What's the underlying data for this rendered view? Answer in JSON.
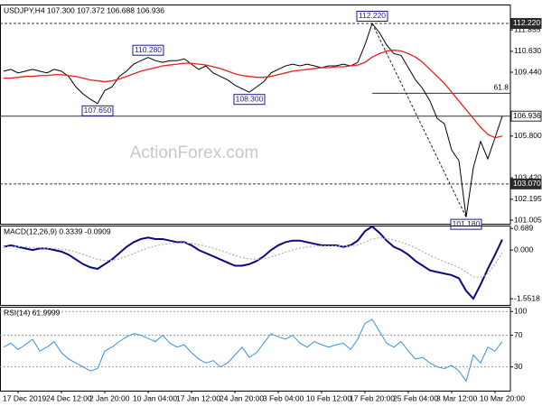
{
  "chart_data": [
    {
      "type": "line",
      "title": "USDJPY,H4 107.300 107.372 106.688 106.936",
      "watermark": "ActionForex.com",
      "ylim": [
        100.8,
        113.3
      ],
      "yticks": [
        101.005,
        102.195,
        {
          "value": 103.42,
          "label": "103.420"
        },
        {
          "value": 105.8,
          "label": "105.800"
        },
        {
          "value": 109.44,
          "label": "109.440"
        },
        {
          "value": 110.63,
          "label": "110.630"
        },
        111.855
      ],
      "series": [
        {
          "color": "#000000",
          "width": 1,
          "values": [
            109.5,
            109.6,
            109.4,
            109.5,
            109.6,
            109.5,
            109.4,
            109.6,
            109.5,
            109.2,
            108.6,
            108.2,
            107.9,
            107.65,
            108.4,
            108.6,
            109.2,
            109.5,
            109.9,
            110.1,
            110.28,
            110.1,
            110.0,
            110.1,
            110.1,
            110.2,
            109.9,
            109.6,
            109.8,
            109.4,
            109.2,
            109.0,
            108.7,
            108.5,
            108.3,
            108.6,
            108.9,
            109.4,
            109.6,
            109.8,
            109.9,
            109.8,
            109.9,
            109.8,
            109.7,
            109.8,
            109.8,
            109.9,
            109.8,
            110.0,
            111.0,
            112.22,
            111.7,
            111.0,
            110.5,
            110.4,
            109.7,
            109.0,
            108.5,
            107.8,
            106.8,
            106.5,
            105.0,
            104.4,
            101.18,
            104.0,
            105.5,
            104.5,
            105.7,
            106.936
          ]
        },
        {
          "color": "#e8221c",
          "width": 1.3,
          "values": [
            109.1,
            109.1,
            109.15,
            109.2,
            109.2,
            109.25,
            109.25,
            109.3,
            109.3,
            109.25,
            109.2,
            109.1,
            109.0,
            108.95,
            108.9,
            108.95,
            109.05,
            109.2,
            109.35,
            109.5,
            109.6,
            109.7,
            109.8,
            109.85,
            109.9,
            109.95,
            109.95,
            109.9,
            109.85,
            109.75,
            109.65,
            109.5,
            109.35,
            109.25,
            109.2,
            109.15,
            109.15,
            109.2,
            109.3,
            109.4,
            109.5,
            109.55,
            109.6,
            109.65,
            109.7,
            109.7,
            109.75,
            109.75,
            109.8,
            109.85,
            110.0,
            110.3,
            110.5,
            110.65,
            110.7,
            110.65,
            110.5,
            110.3,
            110.0,
            109.6,
            109.2,
            108.8,
            108.3,
            107.8,
            107.3,
            106.8,
            106.3,
            105.9,
            105.7,
            105.8
          ]
        }
      ],
      "annotations": [
        {
          "label": "107.650",
          "value": 107.65,
          "x": 13
        },
        {
          "label": "110.280",
          "value": 110.28,
          "x": 20
        },
        {
          "label": "108.300",
          "value": 108.3,
          "x": 34
        },
        {
          "label": "112.220",
          "value": 112.22,
          "x": 51
        },
        {
          "label": "101.180",
          "value": 101.18,
          "x": 64
        }
      ],
      "hlines": [
        {
          "label": "112.220",
          "value": 112.22,
          "line_style": "dashed"
        },
        {
          "label": "106.936",
          "value": 106.936,
          "line_style": "solid"
        },
        {
          "label": "103.070",
          "value": 103.07,
          "line_style": "dashed"
        }
      ],
      "fib": {
        "label": "61.8",
        "value": 108.24,
        "from": 51
      }
    },
    {
      "type": "line",
      "title": "MACD(12,26,9) 0.3339 -0.0909",
      "ylim": [
        -1.75,
        0.78
      ],
      "yticks": [
        0.689,
        {
          "value": 0,
          "label": "0.000"
        },
        -1.5518
      ],
      "series": [
        {
          "color": "#0a0a80",
          "width": 2,
          "values": [
            0.1,
            0.15,
            0.1,
            0.05,
            0.0,
            0.05,
            0.05,
            0.0,
            -0.05,
            -0.15,
            -0.3,
            -0.45,
            -0.55,
            -0.6,
            -0.45,
            -0.3,
            -0.1,
            0.1,
            0.25,
            0.35,
            0.4,
            0.35,
            0.35,
            0.3,
            0.25,
            0.25,
            0.15,
            0.0,
            -0.1,
            -0.2,
            -0.3,
            -0.4,
            -0.5,
            -0.5,
            -0.45,
            -0.35,
            -0.2,
            0.0,
            0.15,
            0.25,
            0.3,
            0.3,
            0.25,
            0.2,
            0.15,
            0.15,
            0.15,
            0.1,
            0.15,
            0.3,
            0.6,
            0.75,
            0.55,
            0.3,
            0.1,
            0.0,
            -0.15,
            -0.35,
            -0.5,
            -0.65,
            -0.7,
            -0.75,
            -0.8,
            -0.9,
            -1.3,
            -1.55,
            -1.1,
            -0.6,
            -0.15,
            0.3339
          ]
        },
        {
          "color": "#b0b0b0",
          "width": 1.2,
          "dash": true,
          "values": [
            0.1,
            0.11,
            0.11,
            0.1,
            0.08,
            0.07,
            0.06,
            0.05,
            0.03,
            0.0,
            -0.06,
            -0.14,
            -0.22,
            -0.3,
            -0.33,
            -0.33,
            -0.28,
            -0.2,
            -0.11,
            -0.02,
            0.07,
            0.13,
            0.18,
            0.21,
            0.22,
            0.23,
            0.21,
            0.17,
            0.12,
            0.06,
            -0.01,
            -0.09,
            -0.17,
            -0.24,
            -0.28,
            -0.3,
            -0.28,
            -0.22,
            -0.15,
            -0.07,
            0.0,
            0.06,
            0.1,
            0.12,
            0.13,
            0.13,
            0.13,
            0.13,
            0.13,
            0.16,
            0.25,
            0.35,
            0.39,
            0.37,
            0.32,
            0.25,
            0.17,
            0.07,
            -0.05,
            -0.17,
            -0.28,
            -0.37,
            -0.46,
            -0.55,
            -0.7,
            -0.85,
            -0.88,
            -0.75,
            -0.45,
            -0.0909
          ]
        }
      ]
    },
    {
      "type": "line",
      "title": "RSI(14) 61.9999",
      "grid": true,
      "ylim": [
        0,
        106
      ],
      "yticks": [
        100,
        70,
        30
      ],
      "categories": [
        null,
        null,
        "17 Dec 2019",
        null,
        null,
        null,
        null,
        null,
        "24 Dec 12:00",
        null,
        null,
        null,
        null,
        null,
        "2 Jan 20:00",
        null,
        null,
        null,
        null,
        null,
        "10 Jan 04:00",
        null,
        null,
        null,
        null,
        null,
        "17 Jan 12:00",
        null,
        null,
        null,
        null,
        null,
        "24 Jan 20:00",
        null,
        null,
        null,
        null,
        null,
        "3 Feb 04:00",
        null,
        null,
        null,
        null,
        null,
        "10 Feb 12:00",
        null,
        null,
        null,
        null,
        null,
        "17 Feb 20:00",
        null,
        null,
        null,
        null,
        null,
        "25 Feb 04:00",
        null,
        null,
        null,
        null,
        null,
        "3 Mar 12:00",
        null,
        null,
        null,
        null,
        null,
        "10 Mar 20:00",
        null
      ],
      "series": [
        {
          "color": "#3c8fe0",
          "width": 1,
          "values": [
            55,
            60,
            52,
            58,
            65,
            50,
            55,
            62,
            48,
            40,
            35,
            30,
            25,
            28,
            50,
            55,
            62,
            68,
            72,
            70,
            66,
            62,
            70,
            60,
            55,
            58,
            48,
            40,
            35,
            38,
            30,
            35,
            45,
            55,
            42,
            48,
            60,
            72,
            68,
            65,
            70,
            60,
            55,
            62,
            58,
            55,
            58,
            60,
            52,
            65,
            85,
            90,
            75,
            60,
            55,
            62,
            50,
            40,
            42,
            35,
            30,
            28,
            32,
            25,
            12,
            45,
            35,
            55,
            50,
            61.9999
          ]
        }
      ]
    }
  ]
}
